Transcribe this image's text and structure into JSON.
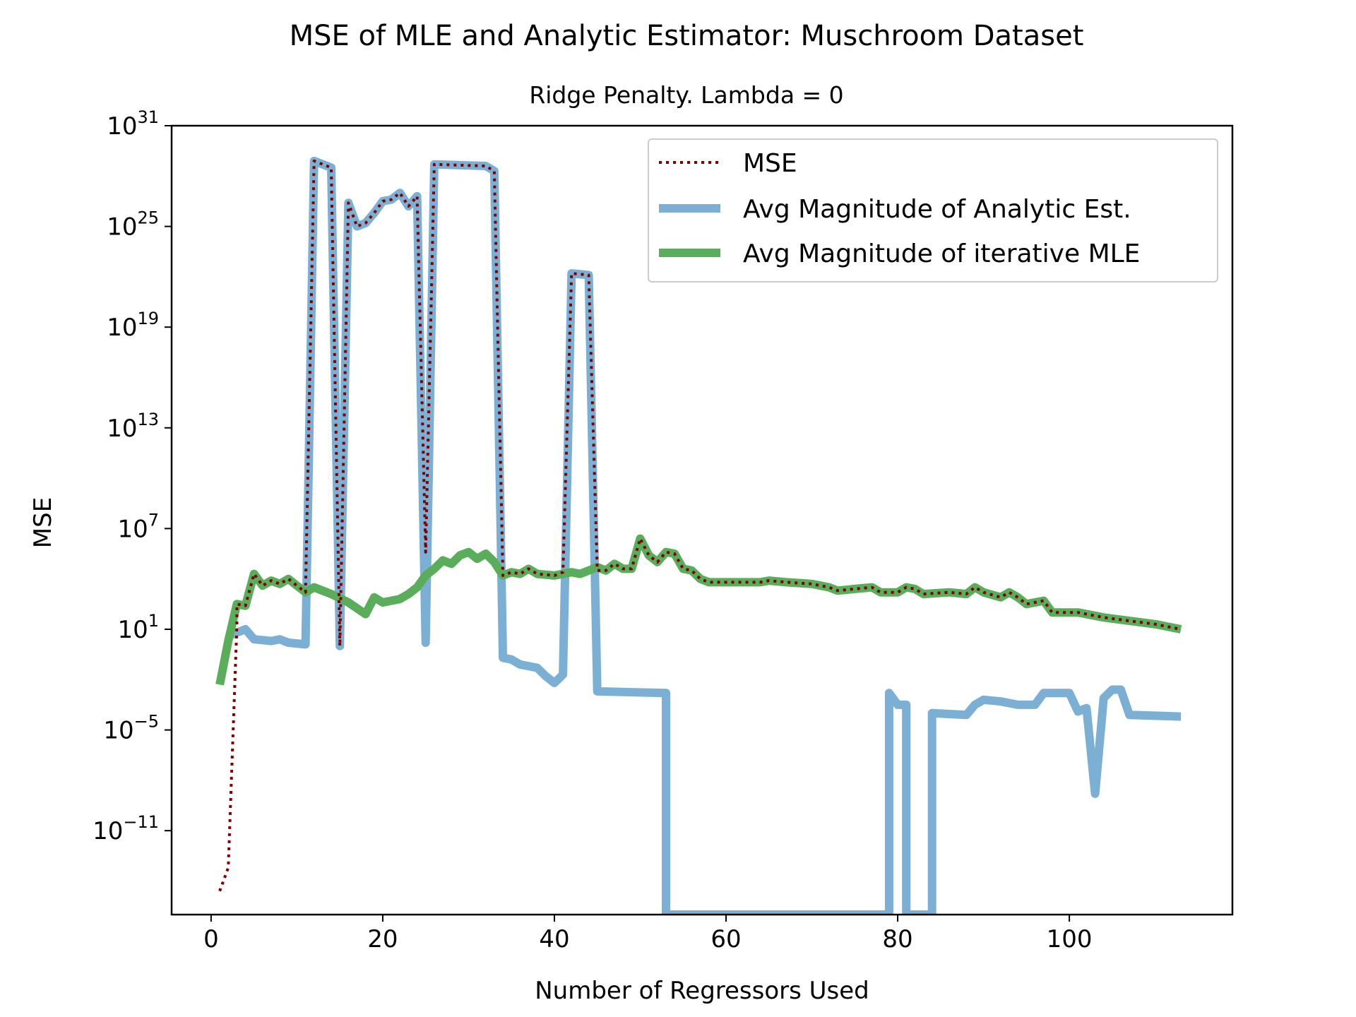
{
  "chart_data": {
    "type": "line",
    "title": "MSE of MLE and Analytic Estimator: Muschroom Dataset",
    "subtitle": "Ridge Penalty. Lambda = 0",
    "xlabel": "Number of Regressors Used",
    "ylabel": "MSE",
    "xlim": [
      -4.6,
      119
    ],
    "ylim_log10": [
      -16,
      31
    ],
    "yscale": "log",
    "x_ticks": [
      0,
      20,
      40,
      60,
      80,
      100
    ],
    "x_tick_labels": [
      "0",
      "20",
      "40",
      "60",
      "80",
      "100"
    ],
    "y_ticks_log10": [
      -11,
      -5,
      1,
      7,
      13,
      19,
      25,
      31
    ],
    "y_tick_labels": [
      {
        "base": "10",
        "exp": "−11"
      },
      {
        "base": "10",
        "exp": "−5"
      },
      {
        "base": "10",
        "exp": "1"
      },
      {
        "base": "10",
        "exp": "7"
      },
      {
        "base": "10",
        "exp": "13"
      },
      {
        "base": "10",
        "exp": "19"
      },
      {
        "base": "10",
        "exp": "25"
      },
      {
        "base": "10",
        "exp": "31"
      }
    ],
    "legend_position": "top-right",
    "series": [
      {
        "name": "Avg Magnitude of Analytic Est.",
        "color": "#7bafd4",
        "style": "solid",
        "points_log10": [
          [
            2,
            0.6
          ],
          [
            3,
            0.8
          ],
          [
            4,
            1
          ],
          [
            5,
            0.4
          ],
          [
            7,
            0.3
          ],
          [
            8,
            0.4
          ],
          [
            9,
            0.2
          ],
          [
            11,
            0.1
          ],
          [
            12,
            28.9
          ],
          [
            14,
            28.5
          ],
          [
            15,
            0
          ],
          [
            16,
            26.4
          ],
          [
            17,
            25
          ],
          [
            18,
            25.2
          ],
          [
            19,
            25.8
          ],
          [
            20,
            26.5
          ],
          [
            21,
            26.6
          ],
          [
            22,
            27
          ],
          [
            23,
            26.2
          ],
          [
            24,
            26.8
          ],
          [
            25,
            0.2
          ],
          [
            26,
            28.7
          ],
          [
            32,
            28.6
          ],
          [
            33,
            28.3
          ],
          [
            34,
            -0.7
          ],
          [
            35,
            -0.8
          ],
          [
            36,
            -1.1
          ],
          [
            38,
            -1.3
          ],
          [
            39,
            -1.8
          ],
          [
            40,
            -2.2
          ],
          [
            41,
            -1.7
          ],
          [
            42,
            22.2
          ],
          [
            44,
            22.1
          ],
          [
            45,
            -2.7
          ],
          [
            53,
            -2.8
          ],
          [
            53,
            -16
          ],
          [
            79,
            -16
          ],
          [
            79,
            -2.8
          ],
          [
            80,
            -3.5
          ],
          [
            81,
            -3.5
          ],
          [
            81,
            -16
          ],
          [
            84,
            -16
          ],
          [
            84,
            -4
          ],
          [
            88,
            -4.1
          ],
          [
            89,
            -3.5
          ],
          [
            90,
            -3.2
          ],
          [
            92,
            -3.3
          ],
          [
            94,
            -3.5
          ],
          [
            96,
            -3.5
          ],
          [
            97,
            -2.8
          ],
          [
            100,
            -2.8
          ],
          [
            101,
            -3.9
          ],
          [
            102,
            -3.7
          ],
          [
            103,
            -8.8
          ],
          [
            104,
            -3.1
          ],
          [
            105,
            -2.6
          ],
          [
            106,
            -2.6
          ],
          [
            107,
            -4.1
          ],
          [
            113,
            -4.2
          ]
        ]
      },
      {
        "name": "Avg Magnitude of iterative MLE",
        "color": "#5aad5a",
        "style": "solid",
        "points_log10": [
          [
            1,
            -2.3
          ],
          [
            2,
            0.3
          ],
          [
            3,
            2.5
          ],
          [
            4,
            2.4
          ],
          [
            5,
            4.3
          ],
          [
            6,
            3.6
          ],
          [
            7,
            3.9
          ],
          [
            8,
            3.7
          ],
          [
            9,
            4
          ],
          [
            10,
            3.6
          ],
          [
            11,
            3.2
          ],
          [
            12,
            3.5
          ],
          [
            14,
            3.1
          ],
          [
            16,
            2.6
          ],
          [
            18,
            1.9
          ],
          [
            19,
            2.9
          ],
          [
            20,
            2.6
          ],
          [
            22,
            2.8
          ],
          [
            23,
            3.1
          ],
          [
            24,
            3.5
          ],
          [
            25,
            4.2
          ],
          [
            26,
            4.6
          ],
          [
            27,
            5.1
          ],
          [
            28,
            4.9
          ],
          [
            29,
            5.4
          ],
          [
            30,
            5.6
          ],
          [
            31,
            5.2
          ],
          [
            32,
            5.5
          ],
          [
            33,
            5
          ],
          [
            34,
            4.2
          ],
          [
            35,
            4.4
          ],
          [
            36,
            4.3
          ],
          [
            37,
            4.6
          ],
          [
            38,
            4.3
          ],
          [
            40,
            4.2
          ],
          [
            42,
            4.4
          ],
          [
            43,
            4.3
          ],
          [
            44,
            4.5
          ],
          [
            45,
            4.7
          ],
          [
            46,
            4.5
          ],
          [
            47,
            4.9
          ],
          [
            48,
            4.6
          ],
          [
            49,
            4.6
          ],
          [
            50,
            6.4
          ],
          [
            51,
            5.4
          ],
          [
            52,
            5
          ],
          [
            53,
            5.6
          ],
          [
            54,
            5.5
          ],
          [
            55,
            4.6
          ],
          [
            56,
            4.5
          ],
          [
            57,
            4
          ],
          [
            58,
            3.8
          ],
          [
            60,
            3.8
          ],
          [
            62,
            3.8
          ],
          [
            64,
            3.8
          ],
          [
            65,
            3.9
          ],
          [
            67,
            3.8
          ],
          [
            70,
            3.7
          ],
          [
            72,
            3.5
          ],
          [
            73,
            3.3
          ],
          [
            75,
            3.4
          ],
          [
            77,
            3.5
          ],
          [
            78,
            3.2
          ],
          [
            80,
            3.2
          ],
          [
            81,
            3.5
          ],
          [
            82,
            3.4
          ],
          [
            83,
            3.1
          ],
          [
            86,
            3.2
          ],
          [
            88,
            3.1
          ],
          [
            89,
            3.5
          ],
          [
            90,
            3.2
          ],
          [
            92,
            2.9
          ],
          [
            93,
            3.2
          ],
          [
            94,
            2.9
          ],
          [
            95,
            2.5
          ],
          [
            97,
            2.7
          ],
          [
            98,
            2
          ],
          [
            101,
            2
          ],
          [
            104,
            1.7
          ],
          [
            107,
            1.5
          ],
          [
            110,
            1.3
          ],
          [
            113,
            1
          ]
        ]
      },
      {
        "name": "MSE",
        "color": "#800000",
        "style": "dotted",
        "points_log10": [
          [
            1,
            -14.6
          ],
          [
            2,
            -13.2
          ],
          [
            3,
            1.2
          ],
          [
            3,
            2.5
          ],
          [
            4,
            2.4
          ],
          [
            5,
            4.3
          ],
          [
            6,
            3.6
          ],
          [
            7,
            3.9
          ],
          [
            8,
            3.7
          ],
          [
            9,
            4
          ],
          [
            10,
            3.6
          ],
          [
            11,
            3.2
          ],
          [
            12,
            28.9
          ],
          [
            14,
            28.5
          ],
          [
            15,
            0
          ],
          [
            16,
            26.4
          ],
          [
            17,
            25
          ],
          [
            18,
            25.2
          ],
          [
            19,
            25.8
          ],
          [
            20,
            26.5
          ],
          [
            21,
            26.6
          ],
          [
            22,
            27
          ],
          [
            23,
            26.2
          ],
          [
            24,
            26.8
          ],
          [
            25,
            5.6
          ],
          [
            26,
            28.7
          ],
          [
            32,
            28.6
          ],
          [
            33,
            28.3
          ],
          [
            34,
            4.2
          ],
          [
            35,
            4.4
          ],
          [
            36,
            4.3
          ],
          [
            37,
            4.6
          ],
          [
            38,
            4.3
          ],
          [
            40,
            4.2
          ],
          [
            41,
            4.4
          ],
          [
            42,
            22.2
          ],
          [
            44,
            22.1
          ],
          [
            45,
            4.5
          ],
          [
            46,
            4.5
          ],
          [
            47,
            4.9
          ],
          [
            48,
            4.6
          ],
          [
            49,
            4.6
          ],
          [
            50,
            6.4
          ],
          [
            51,
            5.4
          ],
          [
            52,
            5
          ],
          [
            53,
            5.6
          ],
          [
            54,
            5.5
          ],
          [
            55,
            4.6
          ],
          [
            56,
            4.5
          ],
          [
            57,
            4
          ],
          [
            58,
            3.8
          ],
          [
            60,
            3.8
          ],
          [
            62,
            3.8
          ],
          [
            64,
            3.8
          ],
          [
            65,
            3.9
          ],
          [
            67,
            3.8
          ],
          [
            70,
            3.7
          ],
          [
            72,
            3.5
          ],
          [
            73,
            3.3
          ],
          [
            75,
            3.4
          ],
          [
            77,
            3.5
          ],
          [
            78,
            3.2
          ],
          [
            80,
            3.2
          ],
          [
            81,
            3.5
          ],
          [
            82,
            3.4
          ],
          [
            83,
            3.1
          ],
          [
            86,
            3.2
          ],
          [
            88,
            3.1
          ],
          [
            89,
            3.5
          ],
          [
            90,
            3.2
          ],
          [
            92,
            2.9
          ],
          [
            93,
            3.2
          ],
          [
            94,
            2.9
          ],
          [
            95,
            2.5
          ],
          [
            97,
            2.7
          ],
          [
            98,
            2
          ],
          [
            101,
            2
          ],
          [
            104,
            1.7
          ],
          [
            107,
            1.5
          ],
          [
            110,
            1.3
          ],
          [
            113,
            1
          ]
        ]
      }
    ],
    "legend": [
      {
        "label": "MSE",
        "color": "#800000",
        "style": "dotted"
      },
      {
        "label": "Avg Magnitude of Analytic Est.",
        "color": "#7bafd4",
        "style": "solid"
      },
      {
        "label": "Avg Magnitude of iterative MLE",
        "color": "#5aad5a",
        "style": "solid"
      }
    ]
  }
}
